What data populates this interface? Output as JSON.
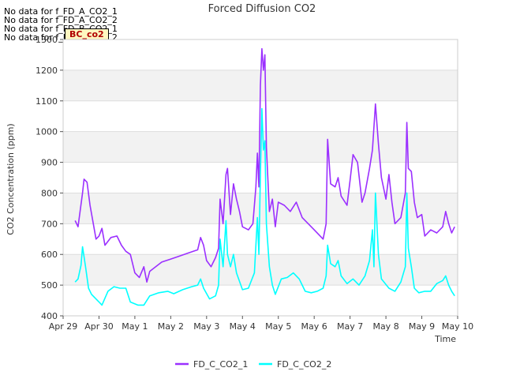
{
  "nodata_messages": [
    "No data for f_FD_A_CO2_1",
    "No data for f_FD_A_CO2_2",
    "No data for f_FD_B_CO2_1",
    "No data for f_FD_B_CO2_2"
  ],
  "badge": "BC_co2",
  "chart_data": {
    "type": "line",
    "title": "Forced Diffusion CO2",
    "xlabel": "Time",
    "ylabel": "CO2 Concentration (ppm)",
    "ylim": [
      400,
      1300
    ],
    "xlim": [
      "2023-04-29",
      "2023-05-10"
    ],
    "yticks": [
      400,
      500,
      600,
      700,
      800,
      900,
      1000,
      1100,
      1200,
      1300
    ],
    "xticks": [
      "Apr 29",
      "Apr 30",
      "May 1",
      "May 2",
      "May 3",
      "May 4",
      "May 5",
      "May 6",
      "May 7",
      "May 8",
      "May 9",
      "May 10"
    ],
    "grid": true,
    "legend_position": "bottom-center",
    "series": [
      {
        "name": "FD_C_CO2_1",
        "color": "#9b30ff",
        "points": [
          [
            "2023-04-29 08:00",
            710
          ],
          [
            "2023-04-29 10:00",
            690
          ],
          [
            "2023-04-29 13:00",
            800
          ],
          [
            "2023-04-29 14:00",
            845
          ],
          [
            "2023-04-29 16:00",
            835
          ],
          [
            "2023-04-29 18:00",
            760
          ],
          [
            "2023-04-29 20:00",
            705
          ],
          [
            "2023-04-29 22:00",
            650
          ],
          [
            "2023-04-30 00:00",
            660
          ],
          [
            "2023-04-30 02:00",
            685
          ],
          [
            "2023-04-30 04:00",
            630
          ],
          [
            "2023-04-30 08:00",
            655
          ],
          [
            "2023-04-30 12:00",
            660
          ],
          [
            "2023-04-30 15:00",
            630
          ],
          [
            "2023-04-30 18:00",
            610
          ],
          [
            "2023-04-30 21:00",
            600
          ],
          [
            "2023-05-01 00:00",
            540
          ],
          [
            "2023-05-01 03:00",
            525
          ],
          [
            "2023-05-01 06:00",
            560
          ],
          [
            "2023-05-01 08:00",
            510
          ],
          [
            "2023-05-01 10:00",
            545
          ],
          [
            "2023-05-01 14:00",
            560
          ],
          [
            "2023-05-01 18:00",
            575
          ],
          [
            "2023-05-02 00:00",
            585
          ],
          [
            "2023-05-02 06:00",
            595
          ],
          [
            "2023-05-02 12:00",
            605
          ],
          [
            "2023-05-02 18:00",
            615
          ],
          [
            "2023-05-02 20:00",
            655
          ],
          [
            "2023-05-02 22:00",
            630
          ],
          [
            "2023-05-03 00:00",
            580
          ],
          [
            "2023-05-03 03:00",
            560
          ],
          [
            "2023-05-03 06:00",
            590
          ],
          [
            "2023-05-03 08:00",
            620
          ],
          [
            "2023-05-03 09:00",
            780
          ],
          [
            "2023-05-03 11:00",
            700
          ],
          [
            "2023-05-03 13:00",
            860
          ],
          [
            "2023-05-03 14:00",
            880
          ],
          [
            "2023-05-03 16:00",
            730
          ],
          [
            "2023-05-03 18:00",
            830
          ],
          [
            "2023-05-03 20:00",
            780
          ],
          [
            "2023-05-03 22:00",
            740
          ],
          [
            "2023-05-04 00:00",
            690
          ],
          [
            "2023-05-04 04:00",
            680
          ],
          [
            "2023-05-04 07:00",
            700
          ],
          [
            "2023-05-04 09:00",
            820
          ],
          [
            "2023-05-04 10:00",
            930
          ],
          [
            "2023-05-04 11:00",
            820
          ],
          [
            "2023-05-04 12:00",
            1150
          ],
          [
            "2023-05-04 13:00",
            1270
          ],
          [
            "2023-05-04 14:00",
            1200
          ],
          [
            "2023-05-04 15:00",
            1250
          ],
          [
            "2023-05-04 16:00",
            950
          ],
          [
            "2023-05-04 18:00",
            740
          ],
          [
            "2023-05-04 20:00",
            780
          ],
          [
            "2023-05-04 22:00",
            690
          ],
          [
            "2023-05-05 00:00",
            770
          ],
          [
            "2023-05-05 04:00",
            760
          ],
          [
            "2023-05-05 08:00",
            740
          ],
          [
            "2023-05-05 12:00",
            770
          ],
          [
            "2023-05-05 16:00",
            720
          ],
          [
            "2023-05-05 20:00",
            700
          ],
          [
            "2023-05-06 00:00",
            680
          ],
          [
            "2023-05-06 06:00",
            650
          ],
          [
            "2023-05-06 08:00",
            700
          ],
          [
            "2023-05-06 09:00",
            975
          ],
          [
            "2023-05-06 11:00",
            830
          ],
          [
            "2023-05-06 14:00",
            820
          ],
          [
            "2023-05-06 16:00",
            850
          ],
          [
            "2023-05-06 18:00",
            790
          ],
          [
            "2023-05-06 22:00",
            760
          ],
          [
            "2023-05-07 00:00",
            840
          ],
          [
            "2023-05-07 02:00",
            925
          ],
          [
            "2023-05-07 05:00",
            900
          ],
          [
            "2023-05-07 08:00",
            770
          ],
          [
            "2023-05-07 10:00",
            800
          ],
          [
            "2023-05-07 13:00",
            880
          ],
          [
            "2023-05-07 15:00",
            940
          ],
          [
            "2023-05-07 17:00",
            1090
          ],
          [
            "2023-05-07 19:00",
            960
          ],
          [
            "2023-05-07 21:00",
            850
          ],
          [
            "2023-05-08 00:00",
            780
          ],
          [
            "2023-05-08 02:00",
            860
          ],
          [
            "2023-05-08 04:00",
            770
          ],
          [
            "2023-05-08 06:00",
            700
          ],
          [
            "2023-05-08 10:00",
            720
          ],
          [
            "2023-05-08 13:00",
            800
          ],
          [
            "2023-05-08 14:00",
            1030
          ],
          [
            "2023-05-08 15:00",
            880
          ],
          [
            "2023-05-08 17:00",
            870
          ],
          [
            "2023-05-08 19:00",
            770
          ],
          [
            "2023-05-08 21:00",
            720
          ],
          [
            "2023-05-09 00:00",
            730
          ],
          [
            "2023-05-09 02:00",
            660
          ],
          [
            "2023-05-09 06:00",
            680
          ],
          [
            "2023-05-09 10:00",
            670
          ],
          [
            "2023-05-09 14:00",
            690
          ],
          [
            "2023-05-09 16:00",
            740
          ],
          [
            "2023-05-09 18:00",
            700
          ],
          [
            "2023-05-09 20:00",
            670
          ],
          [
            "2023-05-09 22:00",
            690
          ]
        ]
      },
      {
        "name": "FD_C_CO2_2",
        "color": "#00ffff",
        "points": [
          [
            "2023-04-29 08:00",
            510
          ],
          [
            "2023-04-29 10:00",
            520
          ],
          [
            "2023-04-29 12:00",
            565
          ],
          [
            "2023-04-29 13:00",
            625
          ],
          [
            "2023-04-29 15:00",
            560
          ],
          [
            "2023-04-29 17:00",
            490
          ],
          [
            "2023-04-29 19:00",
            470
          ],
          [
            "2023-04-29 21:00",
            460
          ],
          [
            "2023-04-30 00:00",
            445
          ],
          [
            "2023-04-30 02:00",
            435
          ],
          [
            "2023-04-30 06:00",
            480
          ],
          [
            "2023-04-30 10:00",
            495
          ],
          [
            "2023-04-30 14:00",
            490
          ],
          [
            "2023-04-30 18:00",
            490
          ],
          [
            "2023-04-30 21:00",
            445
          ],
          [
            "2023-05-01 02:00",
            435
          ],
          [
            "2023-05-01 06:00",
            435
          ],
          [
            "2023-05-01 10:00",
            465
          ],
          [
            "2023-05-01 16:00",
            475
          ],
          [
            "2023-05-01 22:00",
            480
          ],
          [
            "2023-05-02 02:00",
            472
          ],
          [
            "2023-05-02 08:00",
            485
          ],
          [
            "2023-05-02 14:00",
            495
          ],
          [
            "2023-05-02 18:00",
            500
          ],
          [
            "2023-05-02 20:00",
            520
          ],
          [
            "2023-05-02 22:00",
            490
          ],
          [
            "2023-05-03 02:00",
            455
          ],
          [
            "2023-05-03 06:00",
            465
          ],
          [
            "2023-05-03 08:00",
            500
          ],
          [
            "2023-05-03 09:00",
            650
          ],
          [
            "2023-05-03 11:00",
            560
          ],
          [
            "2023-05-03 13:00",
            710
          ],
          [
            "2023-05-03 14:00",
            600
          ],
          [
            "2023-05-03 16:00",
            560
          ],
          [
            "2023-05-03 18:00",
            600
          ],
          [
            "2023-05-03 20:00",
            540
          ],
          [
            "2023-05-04 00:00",
            485
          ],
          [
            "2023-05-04 04:00",
            490
          ],
          [
            "2023-05-04 08:00",
            540
          ],
          [
            "2023-05-04 10:00",
            720
          ],
          [
            "2023-05-04 11:00",
            600
          ],
          [
            "2023-05-04 12:00",
            860
          ],
          [
            "2023-05-04 13:00",
            1075
          ],
          [
            "2023-05-04 14:00",
            940
          ],
          [
            "2023-05-04 15:00",
            970
          ],
          [
            "2023-05-04 16:00",
            700
          ],
          [
            "2023-05-04 18:00",
            560
          ],
          [
            "2023-05-04 20:00",
            500
          ],
          [
            "2023-05-04 22:00",
            470
          ],
          [
            "2023-05-05 02:00",
            520
          ],
          [
            "2023-05-05 06:00",
            525
          ],
          [
            "2023-05-05 10:00",
            540
          ],
          [
            "2023-05-05 14:00",
            520
          ],
          [
            "2023-05-05 18:00",
            480
          ],
          [
            "2023-05-05 22:00",
            475
          ],
          [
            "2023-05-06 02:00",
            480
          ],
          [
            "2023-05-06 06:00",
            490
          ],
          [
            "2023-05-06 08:00",
            530
          ],
          [
            "2023-05-06 09:00",
            630
          ],
          [
            "2023-05-06 11:00",
            570
          ],
          [
            "2023-05-06 14:00",
            560
          ],
          [
            "2023-05-06 16:00",
            580
          ],
          [
            "2023-05-06 18:00",
            530
          ],
          [
            "2023-05-06 22:00",
            505
          ],
          [
            "2023-05-07 02:00",
            520
          ],
          [
            "2023-05-07 06:00",
            500
          ],
          [
            "2023-05-07 10:00",
            530
          ],
          [
            "2023-05-07 13:00",
            580
          ],
          [
            "2023-05-07 15:00",
            680
          ],
          [
            "2023-05-07 16:00",
            560
          ],
          [
            "2023-05-07 17:00",
            800
          ],
          [
            "2023-05-07 19:00",
            600
          ],
          [
            "2023-05-07 21:00",
            520
          ],
          [
            "2023-05-08 02:00",
            490
          ],
          [
            "2023-05-08 06:00",
            480
          ],
          [
            "2023-05-08 10:00",
            510
          ],
          [
            "2023-05-08 13:00",
            560
          ],
          [
            "2023-05-08 14:00",
            800
          ],
          [
            "2023-05-08 15:00",
            620
          ],
          [
            "2023-05-08 17:00",
            560
          ],
          [
            "2023-05-08 19:00",
            490
          ],
          [
            "2023-05-08 22:00",
            475
          ],
          [
            "2023-05-09 02:00",
            480
          ],
          [
            "2023-05-09 06:00",
            480
          ],
          [
            "2023-05-09 10:00",
            505
          ],
          [
            "2023-05-09 14:00",
            515
          ],
          [
            "2023-05-09 16:00",
            530
          ],
          [
            "2023-05-09 18:00",
            500
          ],
          [
            "2023-05-09 20:00",
            480
          ],
          [
            "2023-05-09 22:00",
            465
          ]
        ]
      }
    ]
  }
}
